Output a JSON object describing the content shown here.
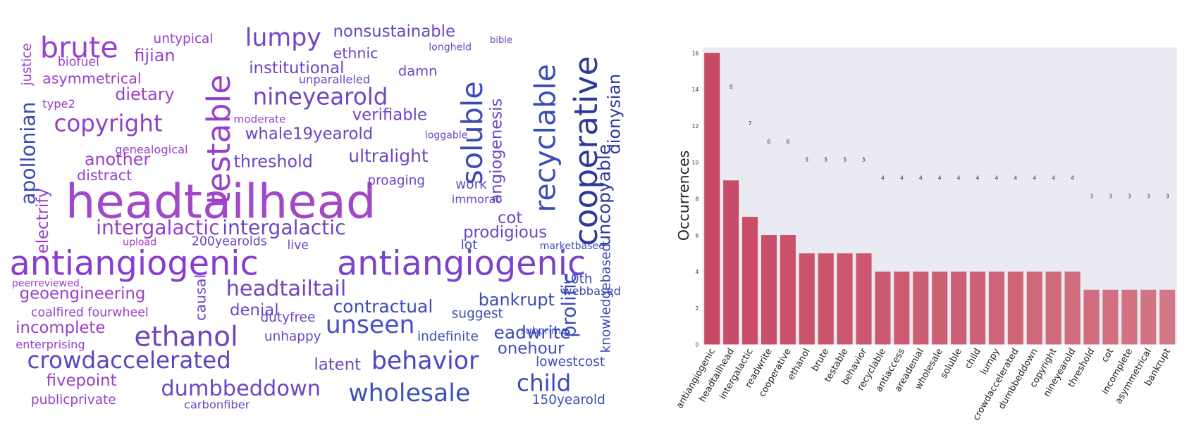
{
  "word_cloud": {
    "words": [
      "headtailhead",
      "antiangiogenic",
      "antiangiogenic",
      "intergalactic",
      "intergalactic",
      "crowdaccelerated",
      "ethanol",
      "behavior",
      "wholesale",
      "dumbbeddown",
      "copyright",
      "brute",
      "lumpy",
      "nonsustainable",
      "nineyearold",
      "unseen",
      "headtailtail",
      "contractual",
      "bankrupt",
      "child",
      "geoengineering",
      "incomplete",
      "fivepoint",
      "publicprivate",
      "coalfired fourwheel",
      "enterprising",
      "denial",
      "ultralight",
      "verifiable",
      "institutional",
      "ethnic",
      "damn",
      "fijian",
      "asymmetrical",
      "dietary",
      "another",
      "distract",
      "threshold",
      "whale19yearold",
      "moderate",
      "apollonian",
      "electrify",
      "testable",
      "soluble",
      "recyclable",
      "cooperative",
      "uncopyable",
      "dionysian",
      "angiogenesis",
      "prolific",
      "knowledgebased",
      "prodigious",
      "proaging",
      "cot",
      "eadwrite",
      "onehour",
      "lowestcost",
      "150yearold",
      "indefinite",
      "suggest",
      "latent",
      "unhappy",
      "dutyfree",
      "causal",
      "200yearolds",
      "live",
      "lot",
      "work",
      "immoral",
      "10th",
      "webbased",
      "subprime",
      "carbonfiber",
      "justice",
      "untypical",
      "biofuel",
      "type2",
      "genealogical",
      "unparalleled",
      "longheld",
      "bible",
      "loggable",
      "marketbased",
      "upload",
      "peerreviewed"
    ]
  },
  "chart_data": {
    "type": "bar",
    "ylabel": "Occurrences",
    "categories": [
      "antiangiogenic",
      "headtailhead",
      "intergalactic",
      "readwrite",
      "cooperative",
      "ethanol",
      "brute",
      "testable",
      "behavior",
      "recyclable",
      "antiaccess",
      "areadenial",
      "wholesale",
      "soluble",
      "child",
      "lumpy",
      "crowdaccelerated",
      "dumbbeddown",
      "copyright",
      "nineyearold",
      "threshold",
      "cot",
      "incomplete",
      "asymmetrical",
      "bankrupt"
    ],
    "values": [
      16,
      9,
      7,
      6,
      6,
      5,
      5,
      5,
      5,
      4,
      4,
      4,
      4,
      4,
      4,
      4,
      4,
      4,
      4,
      4,
      3,
      3,
      3,
      3,
      3
    ],
    "colors": [
      "#c74a66",
      "#c74c67",
      "#c84e68",
      "#c84f69",
      "#c9516a",
      "#c9536b",
      "#ca546c",
      "#ca566d",
      "#cb586e",
      "#cb596f",
      "#cc5b71",
      "#cc5d72",
      "#cd5f73",
      "#cd6074",
      "#ce6276",
      "#ce6477",
      "#cf6678",
      "#cf687a",
      "#d06a7b",
      "#d06c7d",
      "#d16e7e",
      "#d17080",
      "#d27281",
      "#d27483",
      "#d37685"
    ],
    "ylim": [
      0,
      16.3
    ],
    "yticks": [
      0,
      2,
      4,
      6,
      8,
      10,
      12,
      14,
      16
    ],
    "grid": false
  }
}
